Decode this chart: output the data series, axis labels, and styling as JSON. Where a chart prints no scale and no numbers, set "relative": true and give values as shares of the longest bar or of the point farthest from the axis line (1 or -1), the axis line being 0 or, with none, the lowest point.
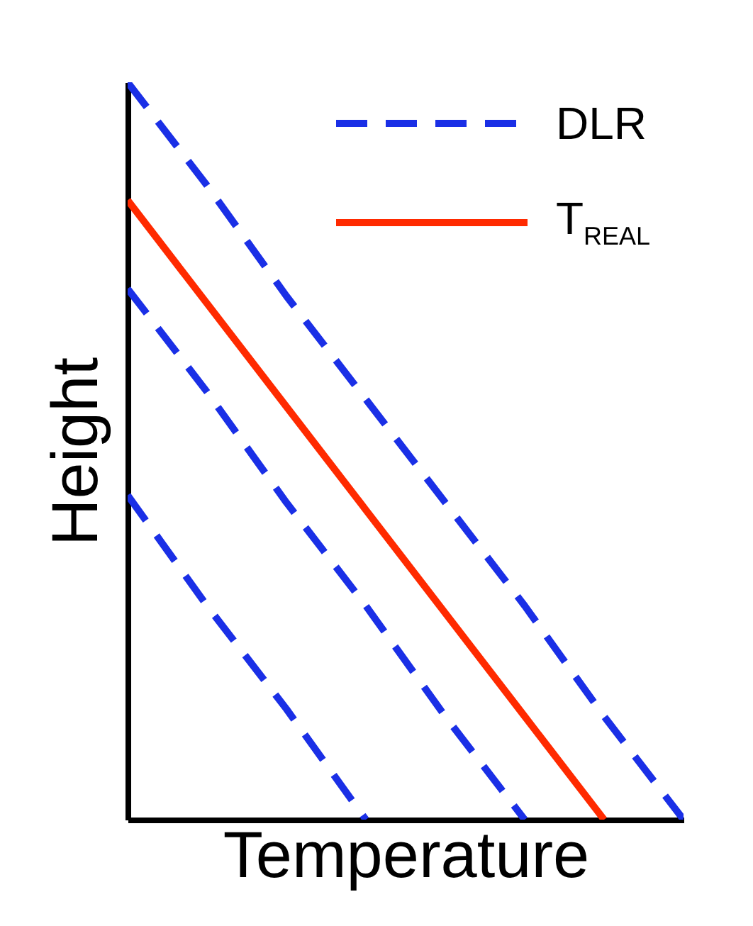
{
  "chart_data": {
    "type": "line",
    "relative": true,
    "xlabel": "Temperature",
    "ylabel": "Height",
    "categories": [
      null,
      null,
      null,
      null,
      null,
      null,
      null,
      null
    ],
    "tick_labels": false,
    "grid": false,
    "legend": "top right",
    "marker": "none",
    "series": [
      {
        "name": "DLR",
        "color": "#1a2fe6",
        "line_style": "dashed",
        "values": [
          1,
          0.86,
          0.71,
          0.57,
          0.43,
          0.29,
          0.14,
          0
        ]
      },
      {
        "name": "T$_{REAL}$",
        "color": "#ff2a00",
        "line_style": "solid",
        "values": [
          0.84,
          0.7,
          0.56,
          0.42,
          0.28,
          0.14,
          0,
          null
        ]
      },
      {
        "color": "#1a2fe6",
        "line_style": "dashed",
        "values": [
          0.72,
          0.58,
          0.43,
          0.29,
          0.14,
          0,
          null,
          null
        ]
      },
      {
        "color": "#1a2fe6",
        "line_style": "dashed",
        "values": [
          0.44,
          0.29,
          0.15,
          0,
          null,
          null,
          null,
          null
        ]
      }
    ]
  }
}
